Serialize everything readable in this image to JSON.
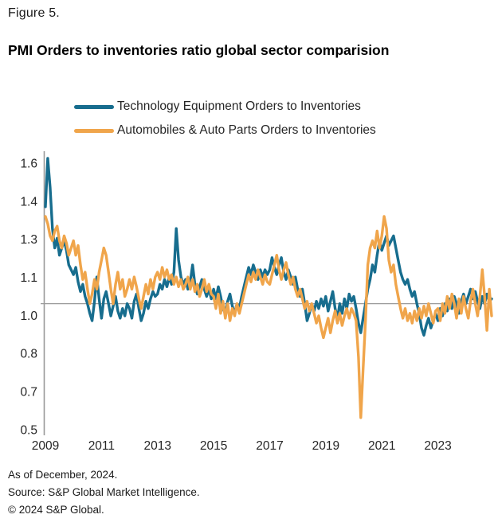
{
  "figure_label": "Figure 5.",
  "title": "PMI Orders to inventories ratio global sector comparision",
  "footnotes": {
    "as_of": "As of December, 2024.",
    "source": "Source: S&P Global Market Intelligence.",
    "copyright": "© 2024 S&P Global."
  },
  "chart_data": {
    "type": "line",
    "title": "PMI Orders to inventories ratio global sector comparision",
    "x_unit": "monthly",
    "x_range": {
      "start": "2009-01",
      "end": "2024-12"
    },
    "x_tick_labels": [
      "2009",
      "2011",
      "2013",
      "2015",
      "2017",
      "2019",
      "2021",
      "2023"
    ],
    "y_axis": {
      "min": 0.5,
      "max": 1.6,
      "tick_labels_top_to_bottom": [
        "1.6",
        "1.4",
        "1.3",
        "1.1",
        "1.0",
        "0.8",
        "0.7",
        "0.5"
      ],
      "grid": false
    },
    "reference_line_value": 1.02,
    "legend_position": "top",
    "axis_color": "#999999",
    "series": [
      {
        "name": "Technology Equipment Orders to Inventories",
        "color": "#176d8e",
        "values": [
          1.42,
          1.62,
          1.5,
          1.33,
          1.25,
          1.29,
          1.22,
          1.25,
          1.28,
          1.24,
          1.18,
          1.16,
          1.14,
          1.17,
          1.11,
          1.07,
          1.1,
          1.05,
          1.02,
          0.98,
          0.95,
          1.03,
          1.13,
          1.04,
          0.96,
          1.04,
          1.07,
          1.02,
          0.97,
          1.01,
          1.05,
          0.99,
          0.96,
          1.0,
          0.97,
          1.02,
          1.0,
          0.96,
          1.03,
          1.06,
          1.0,
          0.95,
          0.98,
          1.03,
          1.0,
          1.04,
          1.07,
          1.05,
          1.06,
          1.1,
          1.08,
          1.12,
          1.09,
          1.13,
          1.1,
          1.15,
          1.33,
          1.2,
          1.13,
          1.1,
          1.12,
          1.08,
          1.11,
          1.18,
          1.1,
          1.06,
          1.09,
          1.12,
          1.08,
          1.05,
          1.08,
          1.04,
          1.08,
          1.04,
          1.09,
          1.05,
          1.0,
          0.98,
          1.03,
          1.06,
          1.01,
          0.98,
          1.02,
          1.0,
          1.05,
          1.09,
          1.13,
          1.17,
          1.14,
          1.18,
          1.15,
          1.12,
          1.16,
          1.13,
          1.16,
          1.14,
          1.16,
          1.21,
          1.17,
          1.14,
          1.18,
          1.21,
          1.15,
          1.12,
          1.16,
          1.13,
          1.1,
          1.13,
          1.08,
          1.05,
          1.08,
          1.02,
          0.95,
          0.98,
          1.02,
          0.99,
          1.03,
          1.0,
          1.04,
          1.01,
          1.05,
          0.99,
          1.03,
          1.07,
          1.0,
          0.96,
          1.02,
          0.98,
          1.04,
          1.0,
          1.06,
          1.03,
          1.05,
          1.0,
          0.94,
          0.9,
          0.96,
          1.02,
          1.08,
          1.12,
          1.18,
          1.15,
          1.22,
          1.28,
          1.24,
          1.27,
          1.3,
          1.26,
          1.28,
          1.3,
          1.25,
          1.2,
          1.15,
          1.12,
          1.1,
          1.12,
          1.08,
          1.05,
          1.07,
          1.02,
          0.98,
          0.92,
          0.89,
          0.93,
          0.96,
          0.92,
          0.95,
          0.98,
          0.95,
          1.0,
          0.97,
          1.02,
          0.99,
          1.04,
          1.0,
          1.05,
          1.02,
          0.98,
          1.03,
          1.06,
          1.02,
          1.05,
          1.08,
          1.04,
          1.07,
          1.03,
          1.0,
          1.05,
          1.02,
          1.06,
          1.03,
          1.04
        ]
      },
      {
        "name": "Automobiles & Auto Parts Orders to Inventories",
        "color": "#f0a54b",
        "values": [
          1.38,
          1.35,
          1.3,
          1.28,
          1.32,
          1.34,
          1.28,
          1.25,
          1.3,
          1.27,
          1.22,
          1.25,
          1.28,
          1.22,
          1.26,
          1.18,
          1.12,
          1.15,
          1.08,
          1.02,
          1.06,
          1.12,
          1.08,
          1.15,
          1.2,
          1.25,
          1.22,
          1.15,
          1.08,
          1.02,
          1.1,
          1.15,
          1.08,
          1.12,
          1.05,
          1.08,
          1.12,
          1.08,
          1.13,
          1.09,
          1.04,
          1.0,
          1.05,
          1.1,
          1.06,
          1.12,
          1.08,
          1.13,
          1.15,
          1.12,
          1.17,
          1.13,
          1.16,
          1.12,
          1.14,
          1.1,
          1.13,
          1.09,
          1.12,
          1.08,
          1.1,
          1.13,
          1.08,
          1.12,
          1.07,
          1.1,
          1.05,
          1.08,
          1.12,
          1.07,
          1.1,
          1.06,
          1.05,
          1.0,
          1.06,
          0.98,
          1.03,
          0.96,
          1.02,
          0.95,
          1.0,
          0.97,
          1.02,
          0.98,
          1.02,
          1.06,
          1.1,
          1.14,
          1.11,
          1.15,
          1.12,
          1.16,
          1.13,
          1.1,
          1.14,
          1.11,
          1.1,
          1.14,
          1.18,
          1.22,
          1.16,
          1.12,
          1.16,
          1.19,
          1.14,
          1.1,
          1.13,
          1.08,
          1.05,
          1.08,
          1.04,
          1.0,
          1.03,
          0.99,
          1.02,
          0.98,
          0.94,
          0.97,
          0.92,
          0.88,
          0.92,
          0.96,
          0.9,
          0.95,
          0.99,
          0.94,
          0.98,
          0.93,
          0.97,
          1.0,
          0.96,
          1.0,
          0.98,
          0.95,
          0.8,
          0.55,
          0.75,
          0.95,
          1.18,
          1.25,
          1.28,
          1.25,
          1.32,
          1.25,
          1.3,
          1.38,
          1.33,
          1.2,
          1.15,
          1.18,
          1.1,
          1.05,
          1.0,
          0.96,
          1.0,
          0.95,
          0.98,
          0.94,
          0.99,
          0.95,
          1.0,
          0.96,
          1.01,
          0.97,
          1.02,
          0.98,
          0.94,
          0.99,
          1.0,
          0.95,
          1.02,
          0.98,
          1.05,
          1.0,
          1.06,
          1.02,
          0.96,
          1.04,
          0.98,
          1.05,
          1.0,
          0.96,
          1.03,
          1.08,
          1.02,
          0.97,
          1.05,
          1.16,
          1.05,
          0.91,
          1.08,
          0.97
        ]
      }
    ]
  }
}
